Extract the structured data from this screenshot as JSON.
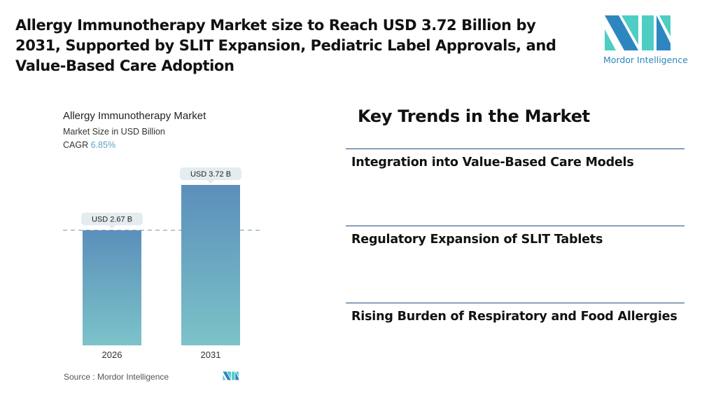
{
  "title": "Allergy Immunotherapy Market size to Reach USD 3.72 Billion by 2031, Supported by SLIT Expansion, Pediatric Label Approvals, and Value-Based Care Adoption",
  "logo": {
    "text": "Mordor Intelligence",
    "colors": [
      "#2e86c1",
      "#4ecdc4"
    ]
  },
  "chart_data": {
    "type": "bar",
    "title": "Allergy Immunotherapy Market",
    "subtitle": "Market Size in USD Billion",
    "cagr_label": "CAGR",
    "cagr_value": "6.85%",
    "categories": [
      "2026",
      "2031"
    ],
    "values": [
      2.67,
      3.72
    ],
    "data_labels": [
      "USD 2.67 B",
      "USD 3.72 B"
    ],
    "ylim": [
      0,
      3.72
    ],
    "grid": false,
    "reference_line": 2.67,
    "bar_colors": [
      "#5b8fba",
      "#7cc3c9"
    ]
  },
  "source": "Source :  Mordor Intelligence",
  "trends": {
    "heading": "Key Trends in the Market",
    "items": [
      "Integration into Value-Based Care Models",
      "Regulatory Expansion of SLIT Tablets",
      "Rising Burden of Respiratory and Food Allergies"
    ]
  }
}
